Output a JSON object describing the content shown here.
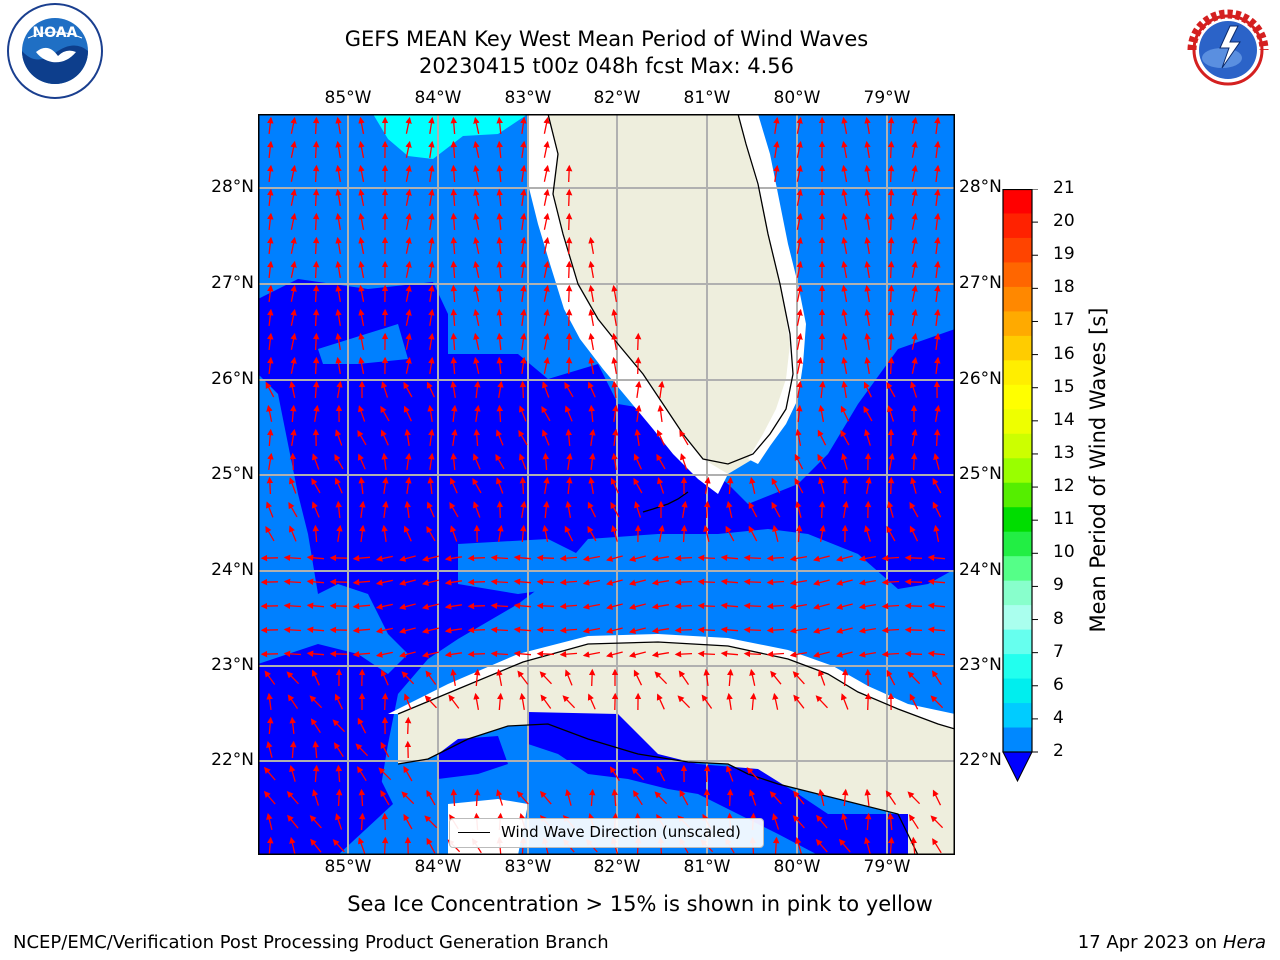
{
  "title_line1": "GEFS MEAN Key West Mean Period of Wind Waves",
  "title_line2": "20230415 t00z 048h fcst   Max: 4.56",
  "logos": {
    "left": "noaa-logo",
    "right": "national-weather-service-logo"
  },
  "lon_labels": [
    "85°W",
    "84°W",
    "83°W",
    "82°W",
    "81°W",
    "80°W",
    "79°W"
  ],
  "lat_labels": [
    "28°N",
    "27°N",
    "26°N",
    "25°N",
    "24°N",
    "23°N",
    "22°N"
  ],
  "colorbar": {
    "label": "Mean Period of Wind Waves [s]",
    "ticks": [
      "21",
      "20",
      "19",
      "18",
      "17",
      "16",
      "15",
      "14",
      "13",
      "12",
      "11",
      "10",
      "9",
      "8",
      "7",
      "6",
      "4",
      "2"
    ],
    "colors": [
      "#ff0000",
      "#ff2200",
      "#ff4400",
      "#ff6600",
      "#ff8800",
      "#ffaa00",
      "#ffcc00",
      "#ffee00",
      "#ffff00",
      "#eeff00",
      "#ccff00",
      "#99ff00",
      "#55ee00",
      "#00dd00",
      "#22ee44",
      "#55ff88",
      "#88ffcc",
      "#aaffee",
      "#66ffee",
      "#22ffee",
      "#00eeee",
      "#00ccff",
      "#0088ff",
      "#0000ff"
    ]
  },
  "legend_text": "Wind Wave Direction (unscaled)",
  "sea_ice_note": "Sea Ice Concentration > 15% is shown in pink to yellow",
  "footer_left": "NCEP/EMC/Verification Post Processing Product Generation Branch",
  "footer_right_date": "17 Apr 2023 on",
  "footer_right_host": "Hera",
  "map_colors": {
    "ocean_low": "#0000ff",
    "ocean_mid": "#0080ff",
    "ocean_cyan": "#00ffff",
    "land": "#eeeedd",
    "arrow": "#ff0000",
    "grid": "#b0b0b0"
  }
}
